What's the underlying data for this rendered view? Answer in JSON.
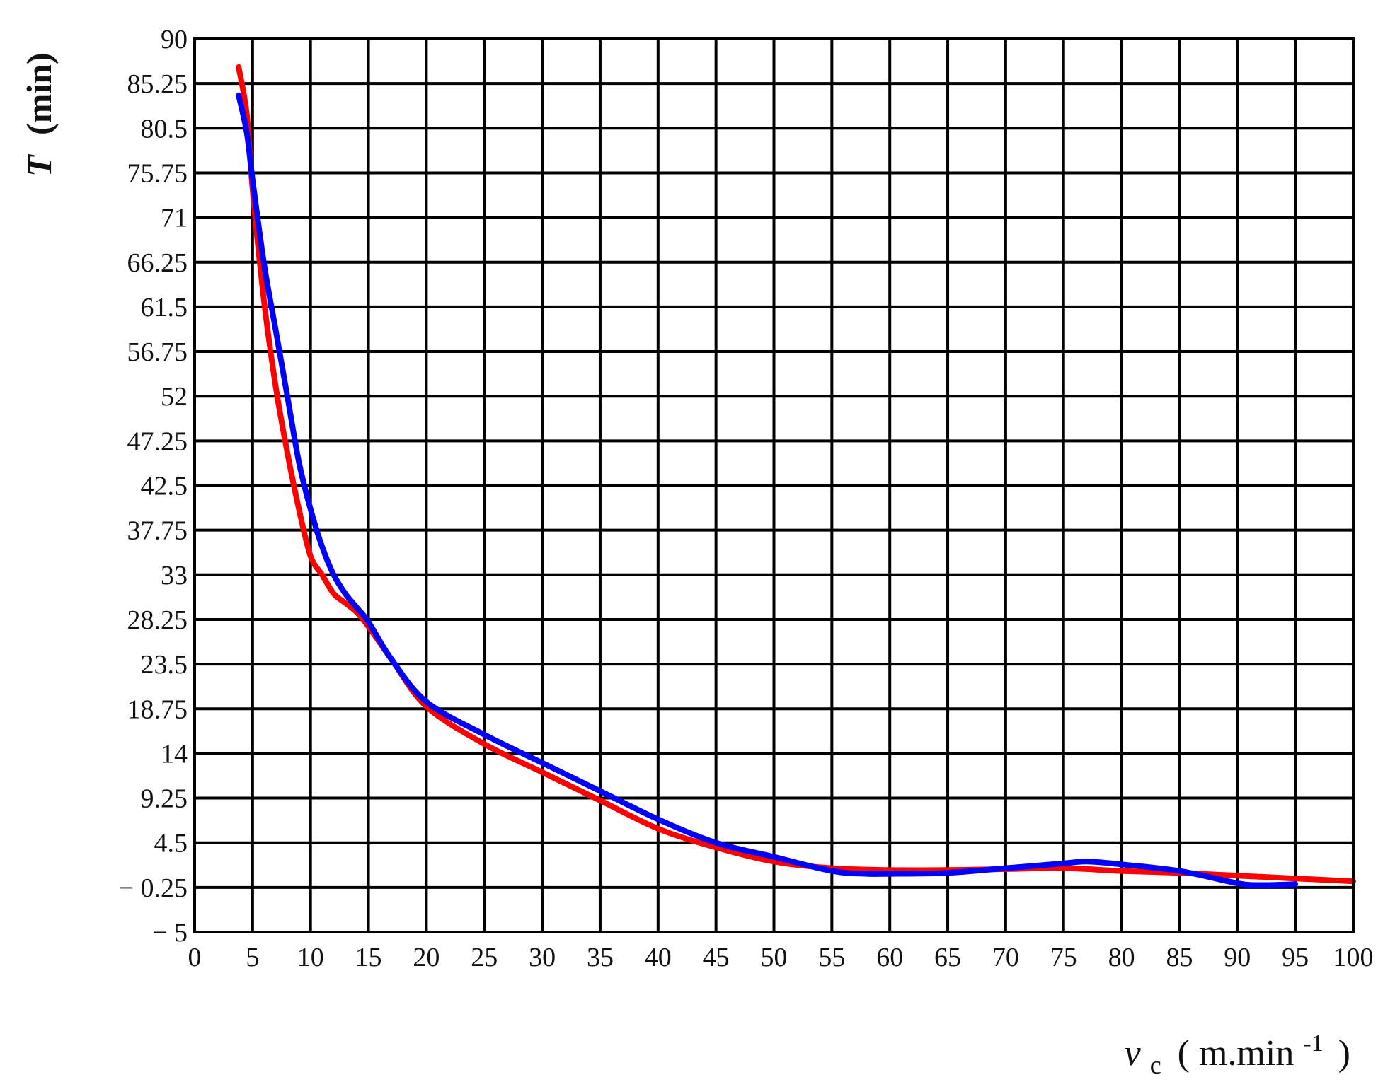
{
  "chart_data": {
    "type": "line",
    "title": "",
    "ylabel": {
      "symbol": "T",
      "unit": "(min)"
    },
    "xlabel": {
      "symbol": "v",
      "subscript": "c",
      "unit_prefix": "( m.min",
      "unit_superscript": "-1",
      "unit_suffix": ")"
    },
    "xlim": [
      0,
      100
    ],
    "ylim": [
      -5,
      90
    ],
    "x_ticks": [
      "0",
      "5",
      "10",
      "15",
      "20",
      "25",
      "30",
      "35",
      "40",
      "45",
      "50",
      "55",
      "60",
      "65",
      "70",
      "75",
      "80",
      "85",
      "90",
      "95",
      "100"
    ],
    "y_ticks": [
      "90",
      "85.25",
      "80.5",
      "75.75",
      "71",
      "66.25",
      "61.5",
      "56.75",
      "52",
      "47.25",
      "42.5",
      "37.75",
      "33",
      "28.25",
      "23.5",
      "18.75",
      "14",
      "9.25",
      "4.5",
      "− 0.25",
      "− 5"
    ],
    "grid": true,
    "legend": "none",
    "series": [
      {
        "color": "#ff0000",
        "x": [
          3.8,
          4.5,
          5,
          6,
          7,
          8,
          9,
          10,
          11,
          12,
          13,
          14,
          15,
          17,
          20,
          25,
          30,
          35,
          40,
          45,
          50,
          55,
          60,
          65,
          70,
          75,
          80,
          85,
          90,
          95,
          100
        ],
        "y": [
          87,
          82,
          74,
          62,
          53,
          46,
          40,
          35,
          33,
          31,
          30,
          29,
          27.5,
          24,
          19,
          15,
          12,
          9,
          6,
          4,
          2.5,
          1.8,
          1.6,
          1.6,
          1.7,
          1.8,
          1.5,
          1.3,
          1,
          0.7,
          0.4
        ]
      },
      {
        "color": "#0000ff",
        "x": [
          3.8,
          4.5,
          5,
          6,
          7,
          8,
          9,
          10,
          11,
          12,
          13,
          14,
          15,
          17,
          20,
          25,
          30,
          35,
          40,
          45,
          50,
          55,
          58,
          60,
          65,
          70,
          75,
          77,
          80,
          85,
          90,
          92,
          95
        ],
        "y": [
          84,
          80,
          75,
          66,
          59,
          52,
          45,
          40,
          36,
          33,
          31,
          29.5,
          28,
          24,
          19.5,
          16,
          13,
          10,
          7,
          4.5,
          3,
          1.5,
          1.2,
          1.2,
          1.3,
          1.8,
          2.3,
          2.5,
          2.2,
          1.5,
          0.2,
          0,
          0.1
        ]
      }
    ]
  }
}
